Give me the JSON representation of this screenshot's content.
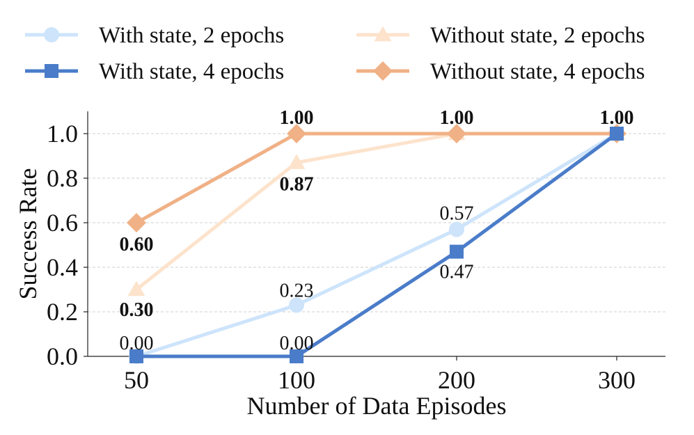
{
  "chart_data": {
    "type": "line",
    "title": "",
    "xlabel": "Number of Data Episodes",
    "ylabel": "Success Rate",
    "categories": [
      "50",
      "100",
      "200",
      "300"
    ],
    "ylim": [
      0,
      1.1
    ],
    "yticks": [
      "0.0",
      "0.2",
      "0.4",
      "0.6",
      "0.8",
      "1.0"
    ],
    "ytick_values": [
      0,
      0.2,
      0.4,
      0.6,
      0.8,
      1.0
    ],
    "grid": "horizontal dashed",
    "legend_position": "top",
    "series": [
      {
        "name": "With state, 2 epochs",
        "marker": "circle",
        "color": "#cde4fb",
        "values": [
          0.0,
          0.23,
          0.57,
          1.0
        ],
        "labels": [
          "0.00",
          "0.23",
          "0.57",
          ""
        ],
        "label_bold": false
      },
      {
        "name": "With state, 4 epochs",
        "marker": "square",
        "color": "#4a7cc9",
        "values": [
          0.0,
          0.0,
          0.47,
          1.0
        ],
        "labels": [
          "",
          "0.00",
          "0.47",
          ""
        ],
        "label_bold": false
      },
      {
        "name": "Without state, 2 epochs",
        "marker": "triangle",
        "color": "#fde3cc",
        "values": [
          0.3,
          0.87,
          1.0,
          1.0
        ],
        "labels": [
          "0.30",
          "0.87",
          "",
          ""
        ],
        "label_bold": true
      },
      {
        "name": "Without state, 4 epochs",
        "marker": "diamond",
        "color": "#f0b186",
        "values": [
          0.6,
          1.0,
          1.0,
          1.0
        ],
        "labels": [
          "0.60",
          "1.00",
          "1.00",
          "1.00"
        ],
        "label_bold": true
      }
    ]
  }
}
